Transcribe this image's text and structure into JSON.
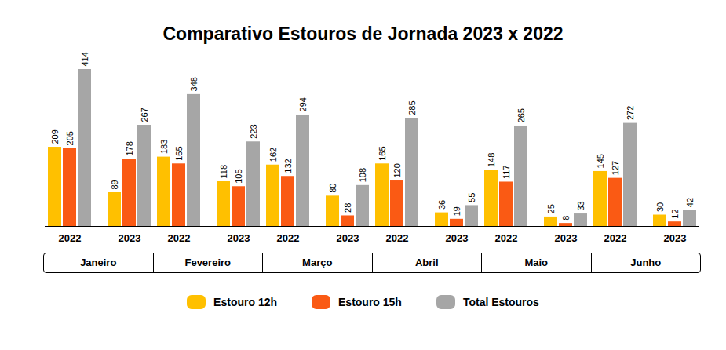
{
  "chart_data": {
    "type": "bar",
    "title": "Comparativo Estouros de Jornada 2023 x 2022",
    "months": [
      "Janeiro",
      "Fevereiro",
      "Março",
      "Abril",
      "Maio",
      "Junho"
    ],
    "categories": [
      "2022",
      "2023",
      "2022",
      "2023",
      "2022",
      "2023",
      "2022",
      "2023",
      "2022",
      "2023",
      "2022",
      "2023"
    ],
    "series": [
      {
        "name": "Estouro 12h",
        "color": "#ffc000",
        "values": [
          209,
          89,
          183,
          118,
          162,
          80,
          165,
          36,
          148,
          25,
          145,
          30
        ]
      },
      {
        "name": "Estouro 15h",
        "color": "#fa5a14",
        "values": [
          205,
          178,
          165,
          105,
          132,
          28,
          120,
          19,
          117,
          8,
          127,
          12
        ]
      },
      {
        "name": "Total Estouros",
        "color": "#a6a6a6",
        "values": [
          414,
          267,
          348,
          223,
          294,
          108,
          285,
          55,
          265,
          33,
          272,
          42
        ]
      }
    ],
    "ylim": [
      0,
      414
    ],
    "data_labels": true,
    "tick_labels": "x",
    "legend": "bottom"
  }
}
